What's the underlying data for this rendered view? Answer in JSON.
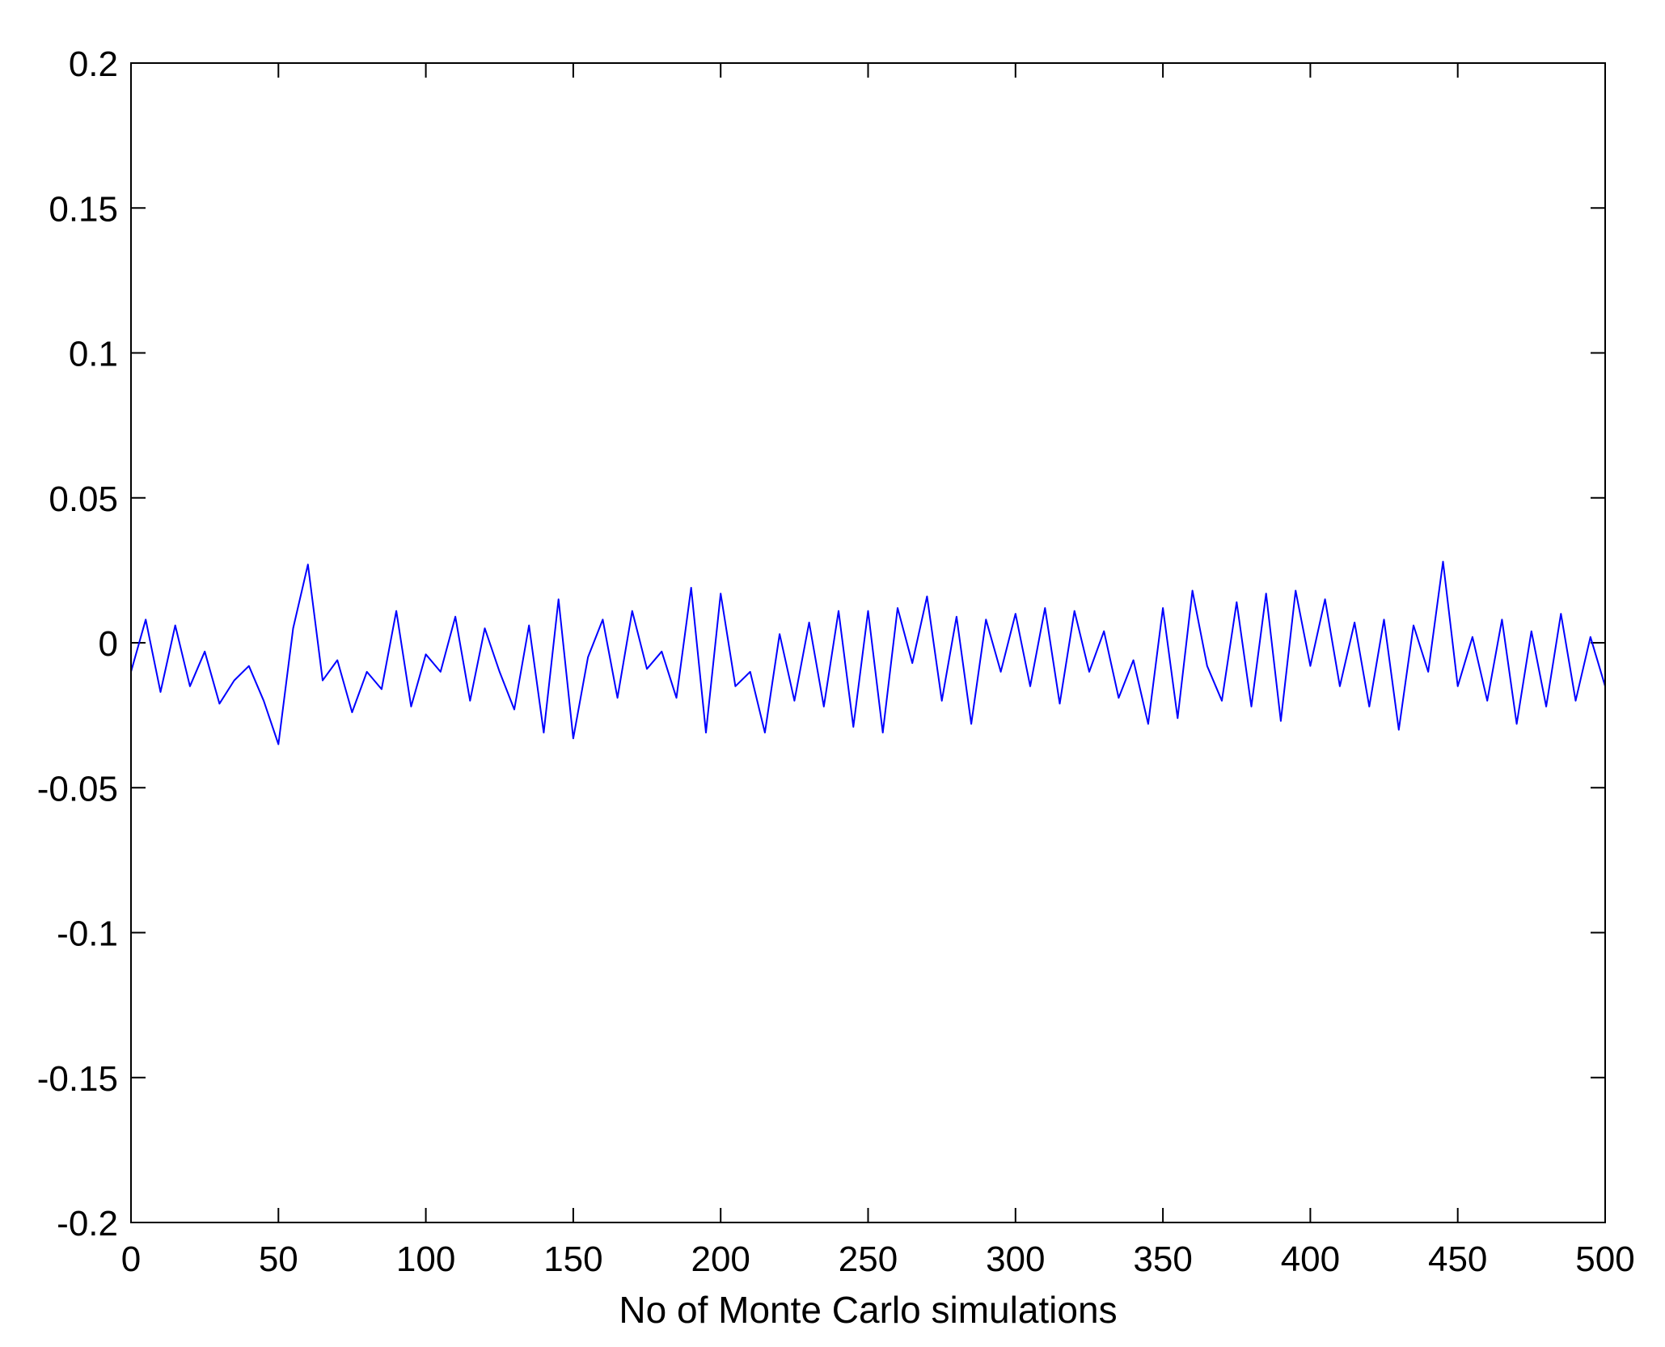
{
  "chart_data": {
    "type": "line",
    "title": "",
    "xlabel": "No of Monte Carlo simulations",
    "ylabel": "",
    "xlim": [
      0,
      500
    ],
    "ylim": [
      -0.2,
      0.2
    ],
    "xticks": [
      0,
      50,
      100,
      150,
      200,
      250,
      300,
      350,
      400,
      450,
      500
    ],
    "yticks": [
      0.2,
      0.15,
      0.1,
      0.05,
      0,
      -0.05,
      -0.1,
      -0.15,
      -0.2
    ],
    "xtick_labels": [
      "0",
      "50",
      "100",
      "150",
      "200",
      "250",
      "300",
      "350",
      "400",
      "450",
      "500"
    ],
    "ytick_labels": [
      "0.2",
      "0.15",
      "0.1",
      "0.05",
      "0",
      "-0.05",
      "-0.1",
      "-0.15",
      "-0.2"
    ],
    "grid": false,
    "legend": "none",
    "line_color": "#0000ff",
    "series": [
      {
        "x": [
          0,
          5,
          10,
          15,
          20,
          25,
          30,
          35,
          40,
          45,
          50,
          55,
          60,
          65,
          70,
          75,
          80,
          85,
          90,
          95,
          100,
          105,
          110,
          115,
          120,
          125,
          130,
          135,
          140,
          145,
          150,
          155,
          160,
          165,
          170,
          175,
          180,
          185,
          190,
          195,
          200,
          205,
          210,
          215,
          220,
          225,
          230,
          235,
          240,
          245,
          250,
          255,
          260,
          265,
          270,
          275,
          280,
          285,
          290,
          295,
          300,
          305,
          310,
          315,
          320,
          325,
          330,
          335,
          340,
          345,
          350,
          355,
          360,
          365,
          370,
          375,
          380,
          385,
          390,
          395,
          400,
          405,
          410,
          415,
          420,
          425,
          430,
          435,
          440,
          445,
          450,
          455,
          460,
          465,
          470,
          475,
          480,
          485,
          490,
          495,
          500
        ],
        "values": [
          -0.01,
          0.008,
          -0.017,
          0.006,
          -0.015,
          -0.003,
          -0.021,
          -0.013,
          -0.008,
          -0.02,
          -0.035,
          0.005,
          0.027,
          -0.013,
          -0.006,
          -0.024,
          -0.01,
          -0.016,
          0.011,
          -0.022,
          -0.004,
          -0.01,
          0.009,
          -0.02,
          0.005,
          -0.01,
          -0.023,
          0.006,
          -0.031,
          0.015,
          -0.033,
          -0.005,
          0.008,
          -0.019,
          0.011,
          -0.009,
          -0.003,
          -0.019,
          0.019,
          -0.031,
          0.017,
          -0.015,
          -0.01,
          -0.031,
          0.003,
          -0.02,
          0.007,
          -0.022,
          0.011,
          -0.029,
          0.011,
          -0.031,
          0.012,
          -0.007,
          0.016,
          -0.02,
          0.009,
          -0.028,
          0.008,
          -0.01,
          0.01,
          -0.015,
          0.012,
          -0.021,
          0.011,
          -0.01,
          0.004,
          -0.019,
          -0.006,
          -0.028,
          0.012,
          -0.026,
          0.018,
          -0.008,
          -0.02,
          0.014,
          -0.022,
          0.017,
          -0.027,
          0.018,
          -0.008,
          0.015,
          -0.015,
          0.007,
          -0.022,
          0.008,
          -0.03,
          0.006,
          -0.01,
          0.028,
          -0.015,
          0.002,
          -0.02,
          0.008,
          -0.028,
          0.004,
          -0.022,
          0.01,
          -0.02,
          0.002,
          -0.015
        ]
      }
    ]
  }
}
